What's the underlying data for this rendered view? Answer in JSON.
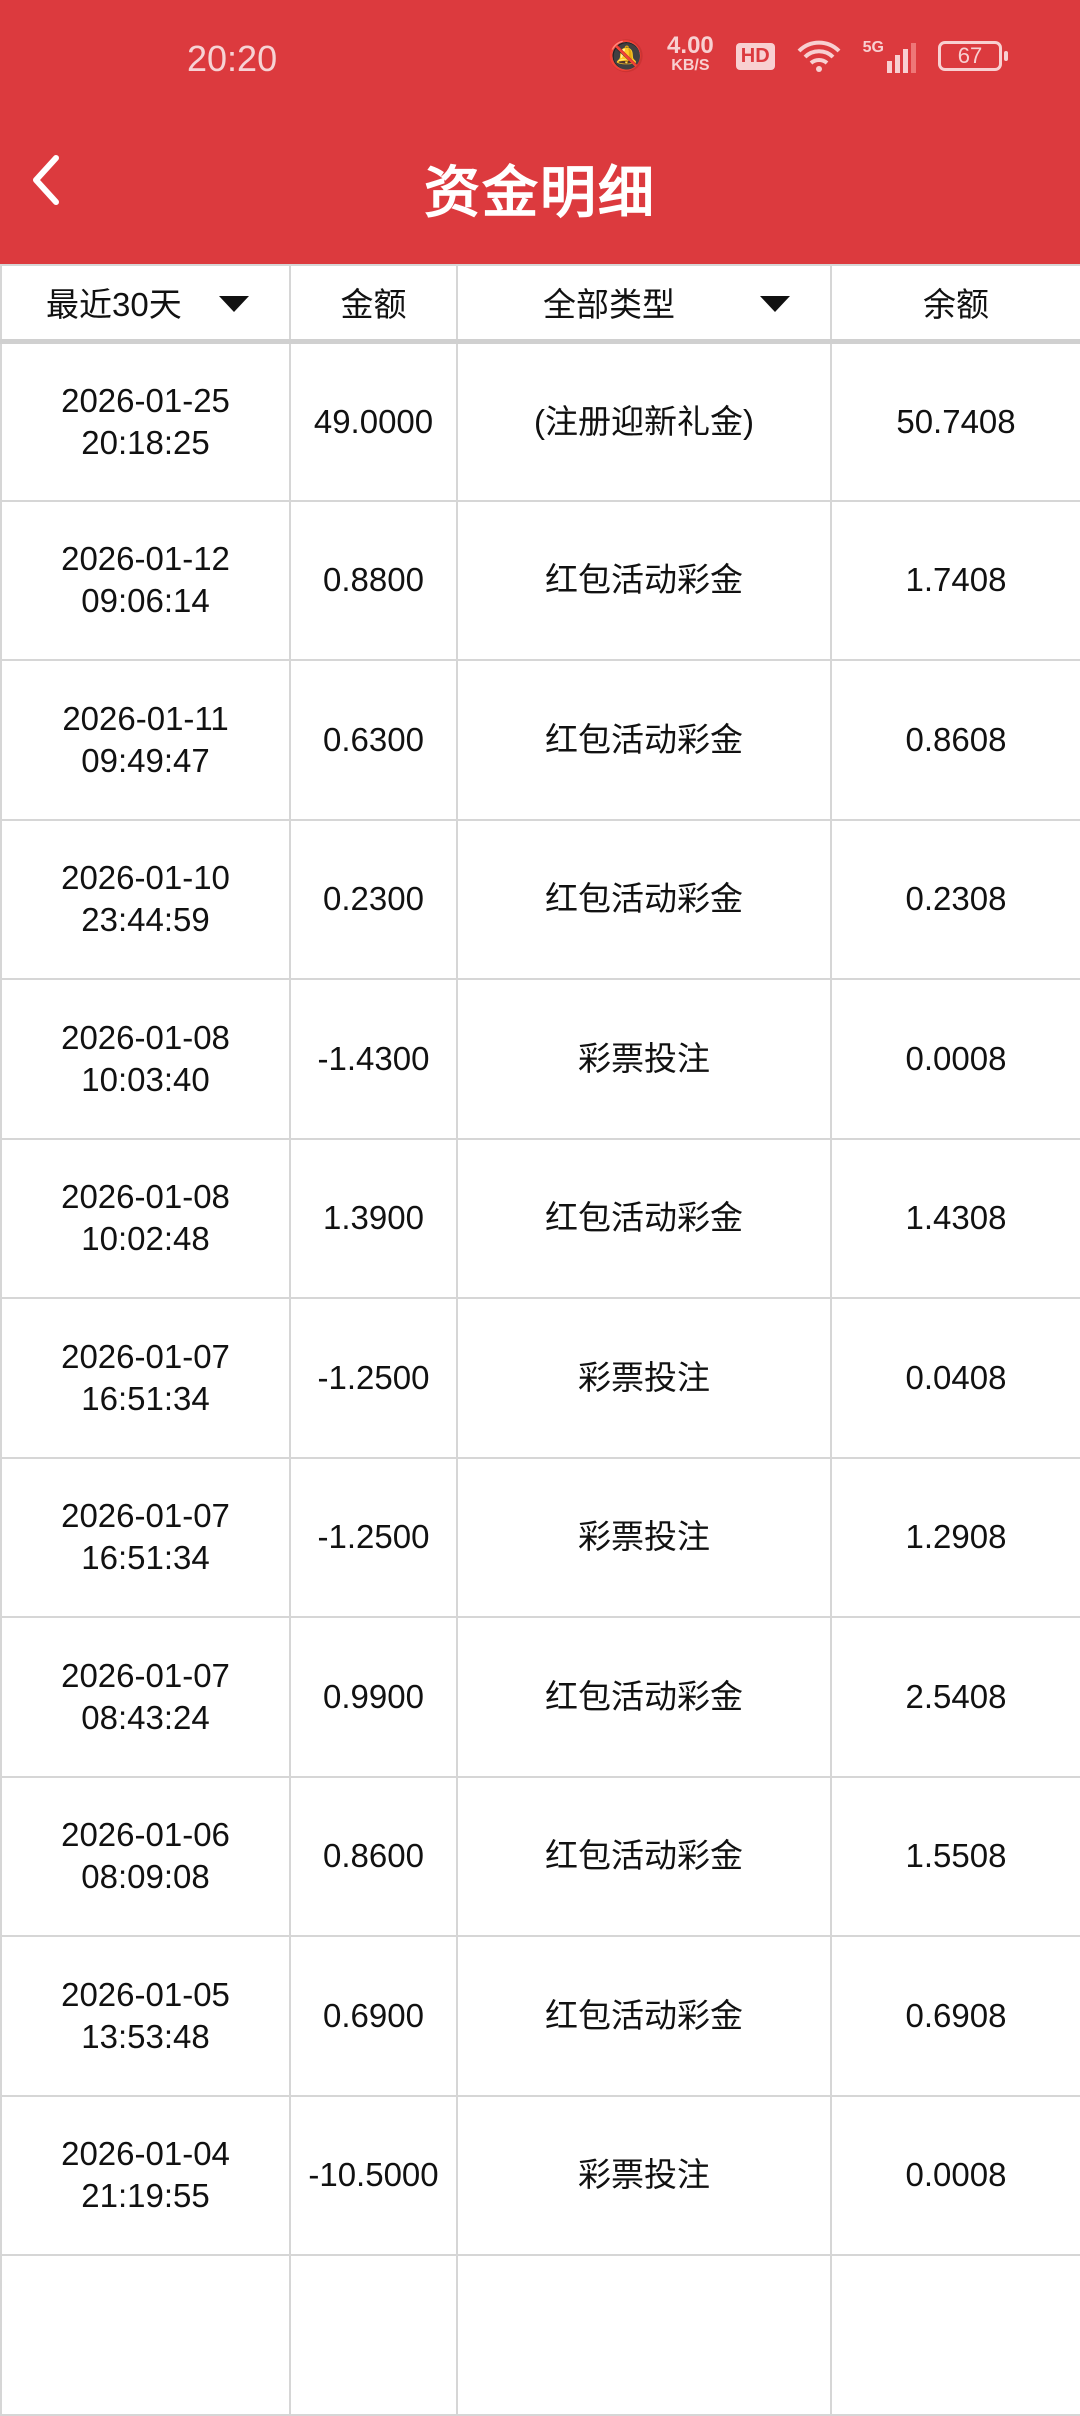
{
  "status": {
    "time": "20:20",
    "speed": "4.00",
    "speed_unit": "KB/S",
    "hd": "HD",
    "network": "5G",
    "battery": "67"
  },
  "header": {
    "title": "资金明细"
  },
  "table": {
    "headers": {
      "date_filter": "最近30天",
      "amount": "金额",
      "type_filter": "全部类型",
      "balance": "余额"
    },
    "rows": [
      {
        "date": "2026-01-25",
        "time": "20:18:25",
        "amount": "49.0000",
        "type": "(注册迎新礼金)",
        "balance": "50.7408"
      },
      {
        "date": "2026-01-12",
        "time": "09:06:14",
        "amount": "0.8800",
        "type": "红包活动彩金",
        "balance": "1.7408"
      },
      {
        "date": "2026-01-11",
        "time": "09:49:47",
        "amount": "0.6300",
        "type": "红包活动彩金",
        "balance": "0.8608"
      },
      {
        "date": "2026-01-10",
        "time": "23:44:59",
        "amount": "0.2300",
        "type": "红包活动彩金",
        "balance": "0.2308"
      },
      {
        "date": "2026-01-08",
        "time": "10:03:40",
        "amount": "-1.4300",
        "type": "彩票投注",
        "balance": "0.0008"
      },
      {
        "date": "2026-01-08",
        "time": "10:02:48",
        "amount": "1.3900",
        "type": "红包活动彩金",
        "balance": "1.4308"
      },
      {
        "date": "2026-01-07",
        "time": "16:51:34",
        "amount": "-1.2500",
        "type": "彩票投注",
        "balance": "0.0408"
      },
      {
        "date": "2026-01-07",
        "time": "16:51:34",
        "amount": "-1.2500",
        "type": "彩票投注",
        "balance": "1.2908"
      },
      {
        "date": "2026-01-07",
        "time": "08:43:24",
        "amount": "0.9900",
        "type": "红包活动彩金",
        "balance": "2.5408"
      },
      {
        "date": "2026-01-06",
        "time": "08:09:08",
        "amount": "0.8600",
        "type": "红包活动彩金",
        "balance": "1.5508"
      },
      {
        "date": "2026-01-05",
        "time": "13:53:48",
        "amount": "0.6900",
        "type": "红包活动彩金",
        "balance": "0.6908"
      },
      {
        "date": "2026-01-04",
        "time": "21:19:55",
        "amount": "-10.5000",
        "type": "彩票投注",
        "balance": "0.0008"
      }
    ]
  },
  "colors": {
    "brand": "#dc3a3e"
  }
}
